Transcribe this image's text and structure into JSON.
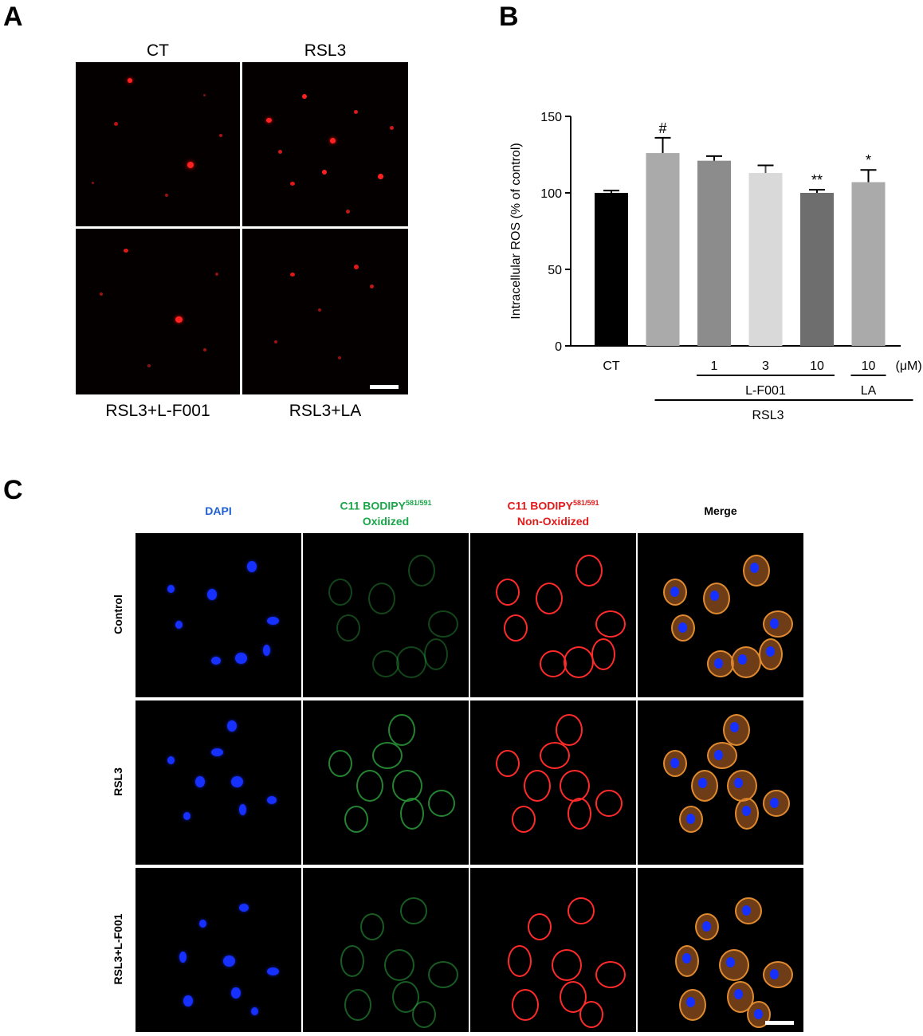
{
  "panels": {
    "A": {
      "letter": "A",
      "top_labels": [
        "CT",
        "RSL3"
      ],
      "bottom_labels": [
        "RSL3+L-F001",
        "RSL3+LA"
      ]
    },
    "B": {
      "letter": "B"
    },
    "C": {
      "letter": "C",
      "columns": [
        {
          "main": "DAPI",
          "sup": "",
          "line2": "",
          "color": "#1f5fd1"
        },
        {
          "main": "C11 BODIPY",
          "sup": "581/591",
          "line2": "Oxidized",
          "color": "#1aa64a"
        },
        {
          "main": "C11 BODIPY",
          "sup": "581/591",
          "line2": "Non-Oxidized",
          "color": "#e21b1b"
        },
        {
          "main": "Merge",
          "sup": "",
          "line2": "",
          "color": "#000000"
        }
      ],
      "rows": [
        "Control",
        "RSL3",
        "RSL3+L-F001"
      ]
    }
  },
  "chart_data": {
    "type": "bar",
    "title": "",
    "ylabel": "Intracellular ROS (% of control)",
    "xlabel": "",
    "ylim": [
      0,
      150
    ],
    "yticks": [
      0,
      50,
      100,
      150
    ],
    "categories": [
      "CT",
      "",
      "1",
      "3",
      "10",
      "10"
    ],
    "unit_label": "(μM)",
    "values": [
      100,
      126,
      121,
      113,
      100,
      107
    ],
    "errors": [
      1.5,
      10,
      3,
      5,
      2,
      8
    ],
    "colors": [
      "#000000",
      "#aaaaaa",
      "#8c8c8c",
      "#d9d9d9",
      "#6e6e6e",
      "#aaaaaa"
    ],
    "annotations": [
      "",
      "#",
      "",
      "",
      "**",
      "*"
    ],
    "group_labels": [
      {
        "label": "L-F001",
        "from": 2,
        "to": 4
      },
      {
        "label": "LA",
        "from": 5,
        "to": 5
      },
      {
        "label": "RSL3",
        "from": 1,
        "to": 5
      }
    ]
  }
}
